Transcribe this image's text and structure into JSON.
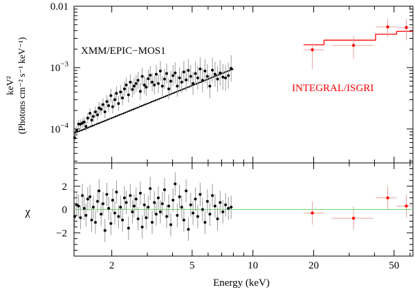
{
  "chart_data": [
    {
      "type": "scatter",
      "panel": "spectrum",
      "xscale": "log",
      "yscale": "log",
      "xlim": [
        1.3,
        62
      ],
      "ylim": [
        2.8e-05,
        0.01
      ],
      "ylabel_line1": "keV²",
      "ylabel_line2": "(Photons cm⁻² s⁻¹ keV⁻¹)",
      "y_ticks": [
        {
          "value": 0.0001,
          "base": "10",
          "exp": "−4"
        },
        {
          "value": 0.001,
          "base": "10",
          "exp": "−3"
        },
        {
          "value": 0.01,
          "label": "0.01"
        }
      ],
      "annotations": [
        {
          "text": "XMM/EPIC−MOS1",
          "color": "#000000"
        },
        {
          "text": "INTEGRAL/ISGRI",
          "color": "#ff0000"
        }
      ],
      "series": [
        {
          "name": "XMM/EPIC-MOS1 data",
          "color": "#000000",
          "error_color": "#999999",
          "x": [
            1.31,
            1.34,
            1.37,
            1.4,
            1.43,
            1.46,
            1.49,
            1.52,
            1.56,
            1.59,
            1.62,
            1.66,
            1.7,
            1.73,
            1.77,
            1.81,
            1.85,
            1.89,
            1.93,
            1.98,
            2.02,
            2.07,
            2.11,
            2.16,
            2.21,
            2.26,
            2.31,
            2.36,
            2.42,
            2.47,
            2.53,
            2.58,
            2.64,
            2.7,
            2.77,
            2.83,
            2.9,
            2.96,
            3.03,
            3.1,
            3.17,
            3.25,
            3.32,
            3.4,
            3.48,
            3.56,
            3.65,
            3.74,
            3.83,
            3.92,
            4.02,
            4.12,
            4.22,
            4.33,
            4.44,
            4.55,
            4.67,
            4.79,
            4.92,
            5.05,
            5.19,
            5.33,
            5.48,
            5.63,
            5.79,
            5.95,
            6.12,
            6.3,
            6.49,
            6.68,
            6.88,
            7.1,
            7.32,
            7.56,
            7.8
          ],
          "y": [
            7.2e-05,
            9.5e-05,
            0.00012,
            0.00012,
            0.000125,
            0.00013,
            0.00011,
            0.00015,
            0.00018,
            0.00014,
            0.00016,
            0.00019,
            0.00017,
            0.00022,
            0.00021,
            0.00025,
            0.00019,
            0.00028,
            0.00024,
            0.00035,
            0.00023,
            0.0003,
            0.00038,
            0.00026,
            0.0004,
            0.00032,
            0.00045,
            0.00052,
            0.00036,
            0.00058,
            0.00044,
            0.0005,
            0.00055,
            0.00062,
            0.00041,
            0.00072,
            0.00052,
            0.00048,
            0.00066,
            0.00075,
            0.00058,
            0.00052,
            0.00078,
            0.00055,
            0.00088,
            0.0005,
            0.00065,
            0.0008,
            0.00045,
            0.0006,
            0.00074,
            0.00082,
            0.0005,
            0.00068,
            0.00058,
            0.00085,
            0.00063,
            0.0009,
            0.00072,
            0.00055,
            0.0008,
            0.00068,
            0.00095,
            0.00062,
            0.00088,
            0.00072,
            0.0005,
            0.00091,
            0.00078,
            0.00065,
            0.00082,
            0.0007,
            0.00068,
            0.00074,
            0.00097
          ],
          "yerr": [
            0.15,
            0.17,
            0.18,
            0.18,
            0.19,
            0.2,
            0.2,
            0.21,
            0.22,
            0.22,
            0.23,
            0.23,
            0.24,
            0.25,
            0.25,
            0.26,
            0.27,
            0.27,
            0.28,
            0.29,
            0.29,
            0.3,
            0.3,
            0.31,
            0.31,
            0.32,
            0.33,
            0.33,
            0.34,
            0.35,
            0.35,
            0.36,
            0.36,
            0.37,
            0.38,
            0.38,
            0.39,
            0.4,
            0.4,
            0.41,
            0.41,
            0.42,
            0.43,
            0.43,
            0.44,
            0.45,
            0.45,
            0.46,
            0.47,
            0.47,
            0.48,
            0.49,
            0.49,
            0.5,
            0.51,
            0.51,
            0.52,
            0.53,
            0.53,
            0.54,
            0.55,
            0.55,
            0.56,
            0.57,
            0.57,
            0.58,
            0.59,
            0.59,
            0.6,
            0.61,
            0.61,
            0.62,
            0.63,
            0.63,
            0.64
          ],
          "xerr_frac": 0.01
        },
        {
          "name": "XMM/EPIC-MOS1 model",
          "color": "#000000",
          "model_norm_at_1keV": 6e-05,
          "model_index": 1.33,
          "model_range": [
            1.3,
            8.0
          ]
        },
        {
          "name": "INTEGRAL/ISGRI data",
          "color": "#ff0000",
          "error_color": "#e8a0a0",
          "x": [
            19.7,
            31.5,
            46.5,
            57.5
          ],
          "y": [
            0.00195,
            0.0023,
            0.0046,
            0.0045
          ],
          "x_low": [
            17.8,
            24.5,
            40.5,
            51.5
          ],
          "x_high": [
            22.5,
            39.5,
            51.5,
            62
          ],
          "y_low": [
            0.00095,
            0.0014,
            0.0031,
            0.0028
          ],
          "y_high": [
            0.0025,
            0.0033,
            0.0062,
            0.0062
          ]
        },
        {
          "name": "INTEGRAL/ISGRI model",
          "color": "#ff0000",
          "steps": [
            {
              "x0": 17.8,
              "x1": 22.5,
              "y": 0.00235
            },
            {
              "x0": 22.5,
              "x1": 40.5,
              "y": 0.0028
            },
            {
              "x0": 40.5,
              "x1": 51.5,
              "y": 0.0035
            },
            {
              "x0": 51.5,
              "x1": 62.0,
              "y": 0.0039
            }
          ]
        }
      ]
    },
    {
      "type": "scatter",
      "panel": "residuals",
      "xscale": "log",
      "xlim": [
        1.3,
        62
      ],
      "ylim": [
        -4,
        4
      ],
      "xlabel": "Energy (keV)",
      "ylabel": "χ",
      "y_ticks": [
        -2,
        0,
        2
      ],
      "y_tick_labels": [
        "−2",
        "0",
        "2"
      ],
      "x_ticks": [
        2,
        5,
        10,
        20,
        50
      ],
      "x_tick_labels": [
        "2",
        "5",
        "10",
        "20",
        "50"
      ],
      "zero_line_color": "#66dd66",
      "series": [
        {
          "name": "XMM/EPIC-MOS1 residuals",
          "color": "#000000",
          "error_color": "#999999",
          "x": [
            1.31,
            1.34,
            1.37,
            1.4,
            1.43,
            1.46,
            1.49,
            1.52,
            1.56,
            1.59,
            1.62,
            1.66,
            1.7,
            1.73,
            1.77,
            1.81,
            1.85,
            1.89,
            1.93,
            1.98,
            2.02,
            2.07,
            2.11,
            2.16,
            2.21,
            2.26,
            2.31,
            2.36,
            2.42,
            2.47,
            2.53,
            2.58,
            2.64,
            2.7,
            2.77,
            2.83,
            2.9,
            2.96,
            3.03,
            3.1,
            3.17,
            3.25,
            3.32,
            3.4,
            3.48,
            3.56,
            3.65,
            3.74,
            3.83,
            3.92,
            4.02,
            4.12,
            4.22,
            4.33,
            4.44,
            4.55,
            4.67,
            4.79,
            4.92,
            5.05,
            5.19,
            5.33,
            5.48,
            5.63,
            5.79,
            5.95,
            6.12,
            6.3,
            6.49,
            6.68,
            6.88,
            7.1,
            7.32,
            7.56,
            7.8
          ],
          "y": [
            -0.6,
            0.4,
            0.3,
            -0.7,
            1.2,
            0.1,
            -0.5,
            0.9,
            1.1,
            -0.9,
            0.2,
            -1.1,
            0.7,
            1.6,
            -0.4,
            0.5,
            -1.8,
            1.3,
            0.1,
            -1.2,
            0.8,
            -0.3,
            1.5,
            -0.6,
            0.2,
            -0.9,
            1.0,
            0.6,
            -1.6,
            1.2,
            -0.2,
            0.3,
            0.9,
            -0.8,
            1.4,
            -1.5,
            0.4,
            -0.7,
            0.2,
            1.8,
            -1.1,
            0.6,
            -0.4,
            1.0,
            -0.2,
            0.5,
            1.7,
            -0.6,
            0.3,
            -1.3,
            0.8,
            2.2,
            -0.5,
            1.1,
            0.2,
            -0.9,
            1.6,
            -1.7,
            0.4,
            -0.3,
            0.9,
            -0.6,
            1.3,
            0.0,
            -1.1,
            0.7,
            -0.4,
            1.2,
            0.3,
            -0.8,
            0.6,
            -0.2,
            0.4,
            0.1,
            0.2
          ],
          "yerr": 1,
          "xerr_frac": 0.01
        },
        {
          "name": "INTEGRAL/ISGRI residuals",
          "color": "#ff0000",
          "error_color": "#e8a0a0",
          "x": [
            19.7,
            31.5,
            46.5,
            57.5
          ],
          "y": [
            -0.3,
            -0.75,
            1.0,
            0.3
          ],
          "x_low": [
            17.8,
            24.5,
            40.5,
            51.5
          ],
          "x_high": [
            22.5,
            39.5,
            51.5,
            62
          ],
          "yerr": 1
        }
      ]
    }
  ]
}
